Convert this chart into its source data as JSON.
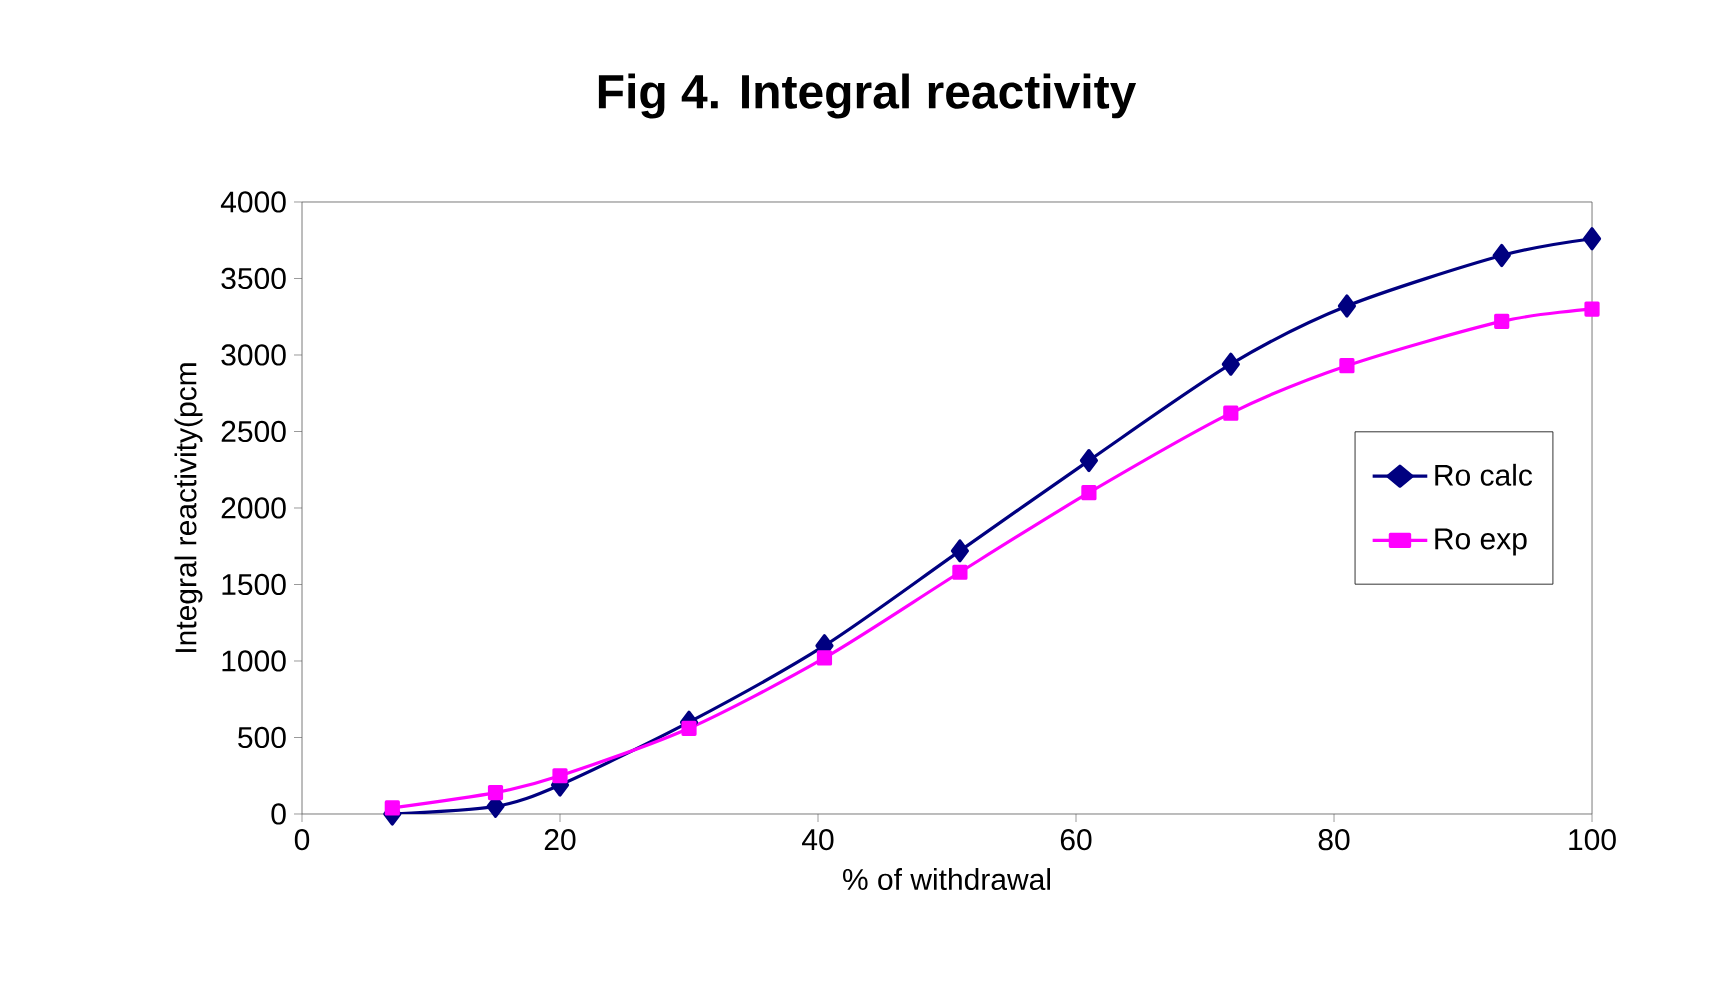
{
  "chart_data": {
    "type": "line",
    "title": "Fig 4. Integral  reactivity",
    "xlabel": "% of withdrawal",
    "ylabel": "Integral reactivity(pcm",
    "xlim": [
      0,
      100
    ],
    "xticks": [
      0,
      20,
      40,
      60,
      80,
      100
    ],
    "ylim": [
      0,
      4000
    ],
    "yticks": [
      0,
      500,
      1000,
      1500,
      2000,
      2500,
      3000,
      3500,
      4000
    ],
    "legend": "right",
    "grid": false,
    "series": [
      {
        "name": "Ro calc",
        "color": "#000080",
        "marker": "diamond",
        "x": [
          7,
          15,
          20,
          30,
          40.5,
          51,
          61,
          72,
          81,
          93,
          100
        ],
        "values": [
          0,
          50,
          190,
          600,
          1100,
          1720,
          2310,
          2940,
          3320,
          3650,
          3760
        ]
      },
      {
        "name": "Ro exp",
        "color": "#ff00ff",
        "marker": "square",
        "x": [
          7,
          15,
          20,
          30,
          40.5,
          51,
          61,
          72,
          81,
          93,
          100
        ],
        "values": [
          40,
          140,
          250,
          560,
          1020,
          1580,
          2100,
          2620,
          2930,
          3220,
          3300
        ]
      }
    ]
  }
}
